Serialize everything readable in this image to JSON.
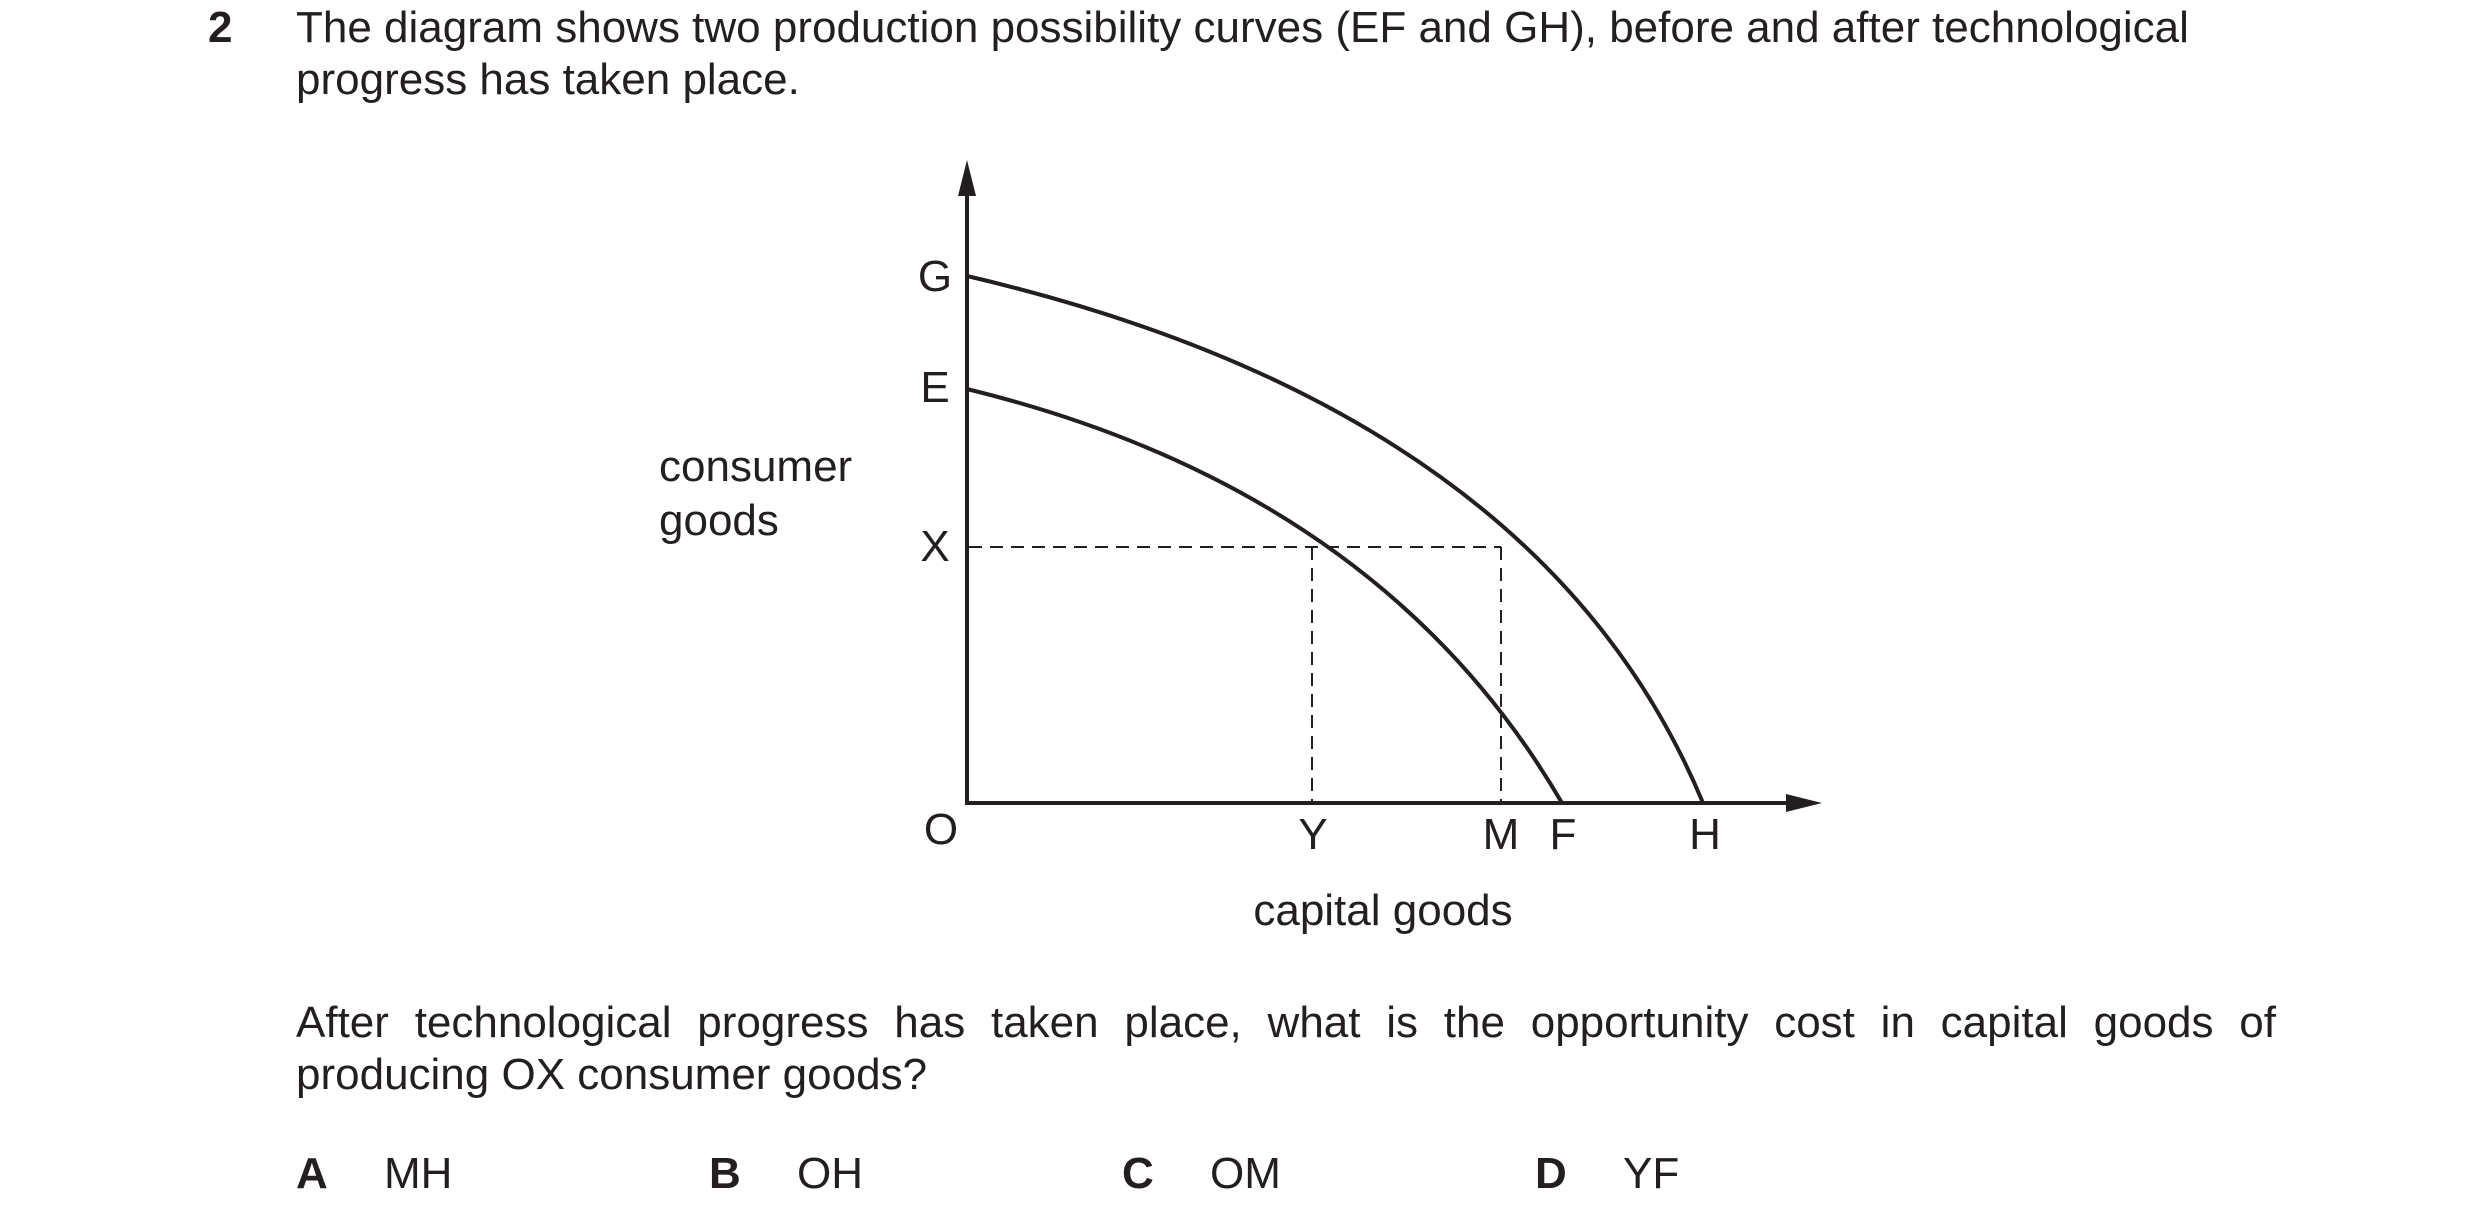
{
  "question": {
    "number": "2",
    "stem": "The diagram shows two production possibility curves (EF and GH), before and after technological progress has taken place.",
    "prompt": "After technological progress has taken place, what is the opportunity cost in capital goods of producing OX consumer goods?"
  },
  "diagram": {
    "y_axis_label_line1": "consumer",
    "y_axis_label_line2": "goods",
    "x_axis_label": "capital goods",
    "origin_label": "O",
    "y_points": {
      "G": "G",
      "E": "E",
      "X": "X"
    },
    "x_points": {
      "Y": "Y",
      "M": "M",
      "F": "F",
      "H": "H"
    },
    "curves": [
      {
        "name": "EF",
        "from": "E",
        "to": "F"
      },
      {
        "name": "GH",
        "from": "G",
        "to": "H"
      }
    ]
  },
  "options": [
    {
      "letter": "A",
      "text": "MH"
    },
    {
      "letter": "B",
      "text": "OH"
    },
    {
      "letter": "C",
      "text": "OM"
    },
    {
      "letter": "D",
      "text": "YF"
    }
  ],
  "colors": {
    "ink": "#231f20",
    "background": "#ffffff"
  }
}
